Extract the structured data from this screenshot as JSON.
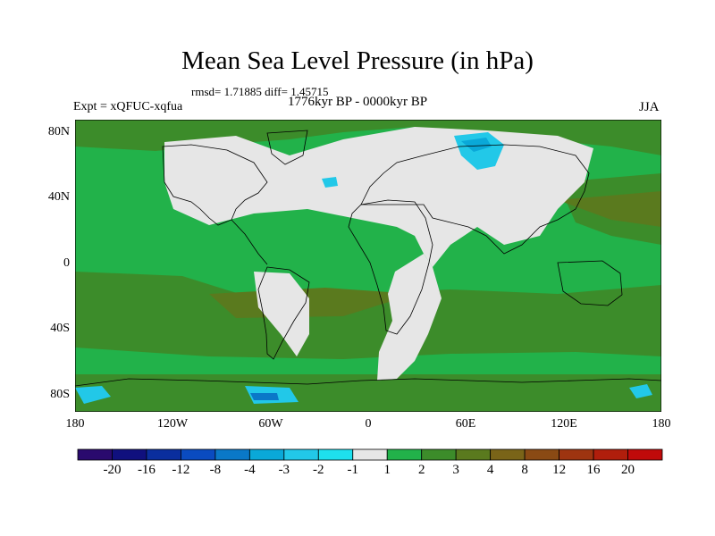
{
  "title": "Mean Sea Level Pressure (in hPa)",
  "stats": "rmsd= 1.71885 diff= 1.45715",
  "experiment": "Expt = xQFUC-xqfua",
  "period": "1776kyr BP - 0000kyr BP",
  "season": "JJA",
  "y_axis_labels": [
    "80N",
    "40N",
    "0",
    "40S",
    "80S"
  ],
  "x_axis_labels": [
    "180",
    "120W",
    "60W",
    "0",
    "60E",
    "120E",
    "180"
  ],
  "colorbar": {
    "colors": [
      "#2a0a6e",
      "#10107e",
      "#0a2e9e",
      "#0a4bc0",
      "#0a78c8",
      "#0aa8d8",
      "#22c8e8",
      "#1ee0ee",
      "#e6e6e6",
      "#22b24a",
      "#3c8c2a",
      "#5a7a1e",
      "#7a6418",
      "#8a4a14",
      "#9e3410",
      "#b01e0c",
      "#c00a0a"
    ],
    "labels": [
      "-20",
      "-16",
      "-12",
      "-8",
      "-4",
      "-3",
      "-2",
      "-1",
      "1",
      "2",
      "3",
      "4",
      "8",
      "12",
      "16",
      "20"
    ]
  },
  "field_colors": {
    "green": "#22b24a",
    "dark_green": "#3c8c2a",
    "olive": "#5a7a1e",
    "near_zero": "#e6e6e6",
    "cyan": "#22c8e8",
    "light_blue": "#0aa8d8",
    "blue": "#0a78c8"
  }
}
